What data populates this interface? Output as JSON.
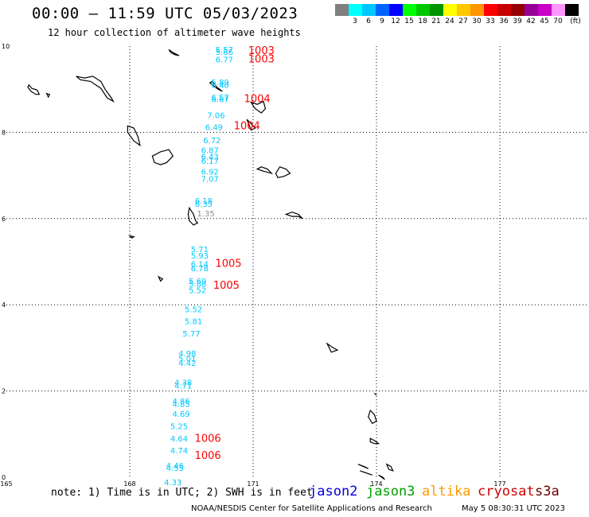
{
  "header": {
    "title": "00:00 — 11:59 UTC 05/03/2023",
    "subtitle": "12 hour collection of altimeter wave heights"
  },
  "scale": {
    "unit": "(ft)",
    "levels": [
      {
        "label": "",
        "color": "#7f7f7f"
      },
      {
        "label": "3",
        "color": "#00ffff"
      },
      {
        "label": "6",
        "color": "#00c8ff"
      },
      {
        "label": "9",
        "color": "#0064ff"
      },
      {
        "label": "12",
        "color": "#0000ff"
      },
      {
        "label": "15",
        "color": "#00ff00"
      },
      {
        "label": "18",
        "color": "#00c800"
      },
      {
        "label": "21",
        "color": "#009600"
      },
      {
        "label": "24",
        "color": "#ffff00"
      },
      {
        "label": "27",
        "color": "#ffc800"
      },
      {
        "label": "30",
        "color": "#ff9600"
      },
      {
        "label": "33",
        "color": "#ff0000"
      },
      {
        "label": "36",
        "color": "#c80000"
      },
      {
        "label": "39",
        "color": "#960000"
      },
      {
        "label": "42",
        "color": "#960096"
      },
      {
        "label": "45",
        "color": "#c800c8"
      },
      {
        "label": "70",
        "color": "#ff96ff"
      },
      {
        "label": "",
        "color": "#000000"
      }
    ]
  },
  "axes": {
    "lat_labels": [
      "10",
      "8",
      "6",
      "4",
      "2",
      "0"
    ],
    "lon_labels": [
      "165",
      "168",
      "171",
      "174",
      "177"
    ]
  },
  "wave_readings": [
    {
      "v": "5.57",
      "lat": 9.85,
      "lon": 170.3
    },
    {
      "v": "5.86",
      "lat": 9.8,
      "lon": 170.3
    },
    {
      "v": "6.77",
      "lat": 9.62,
      "lon": 170.3
    },
    {
      "v": "5.89",
      "lat": 9.1,
      "lon": 170.2
    },
    {
      "v": "6.40",
      "lat": 9.03,
      "lon": 170.2
    },
    {
      "v": "6.57",
      "lat": 8.75,
      "lon": 170.2
    },
    {
      "v": "6.67",
      "lat": 8.7,
      "lon": 170.2
    },
    {
      "v": "7.06",
      "lat": 8.33,
      "lon": 170.1
    },
    {
      "v": "6.49",
      "lat": 8.05,
      "lon": 170.05
    },
    {
      "v": "6.72",
      "lat": 7.75,
      "lon": 170.0
    },
    {
      "v": "6.87",
      "lat": 7.52,
      "lon": 169.95
    },
    {
      "v": "6.43",
      "lat": 7.37,
      "lon": 169.95
    },
    {
      "v": "6.17",
      "lat": 7.27,
      "lon": 169.95
    },
    {
      "v": "6.92",
      "lat": 7.02,
      "lon": 169.95
    },
    {
      "v": "7.07",
      "lat": 6.85,
      "lon": 169.95
    },
    {
      "v": "6.18",
      "lat": 6.35,
      "lon": 169.8
    },
    {
      "v": "6.35",
      "lat": 6.27,
      "lon": 169.8
    },
    {
      "v": "1.35",
      "lat": 6.05,
      "lon": 169.85,
      "grey": true
    },
    {
      "v": "5.71",
      "lat": 5.22,
      "lon": 169.7
    },
    {
      "v": "5.93",
      "lat": 5.07,
      "lon": 169.7
    },
    {
      "v": "6.14",
      "lat": 4.88,
      "lon": 169.7
    },
    {
      "v": "6.78",
      "lat": 4.78,
      "lon": 169.7
    },
    {
      "v": "5.69",
      "lat": 4.48,
      "lon": 169.65
    },
    {
      "v": "5.88",
      "lat": 4.42,
      "lon": 169.65
    },
    {
      "v": "5.52",
      "lat": 4.27,
      "lon": 169.65
    },
    {
      "v": "5.52",
      "lat": 3.83,
      "lon": 169.55
    },
    {
      "v": "5.81",
      "lat": 3.55,
      "lon": 169.55
    },
    {
      "v": "5.77",
      "lat": 3.27,
      "lon": 169.5
    },
    {
      "v": "4.98",
      "lat": 2.8,
      "lon": 169.4
    },
    {
      "v": "5.01",
      "lat": 2.68,
      "lon": 169.4
    },
    {
      "v": "4.42",
      "lat": 2.58,
      "lon": 169.4
    },
    {
      "v": "4.38",
      "lat": 2.13,
      "lon": 169.3
    },
    {
      "v": "4.71",
      "lat": 2.06,
      "lon": 169.3
    },
    {
      "v": "4.86",
      "lat": 1.7,
      "lon": 169.25
    },
    {
      "v": "4.85",
      "lat": 1.63,
      "lon": 169.25
    },
    {
      "v": "4.69",
      "lat": 1.4,
      "lon": 169.25
    },
    {
      "v": "5.25",
      "lat": 1.12,
      "lon": 169.2
    },
    {
      "v": "4.64",
      "lat": 0.83,
      "lon": 169.2
    },
    {
      "v": "4.74",
      "lat": 0.55,
      "lon": 169.2
    },
    {
      "v": "4.46",
      "lat": 0.2,
      "lon": 169.1
    },
    {
      "v": "4.55",
      "lat": 0.15,
      "lon": 169.1
    },
    {
      "v": "4.33",
      "lat": -0.18,
      "lon": 169.05
    }
  ],
  "pressure_labels": [
    {
      "v": "1003",
      "lat": 9.82,
      "lon": 171.2
    },
    {
      "v": "1003",
      "lat": 9.62,
      "lon": 171.2
    },
    {
      "v": "1004",
      "lat": 8.7,
      "lon": 171.1
    },
    {
      "v": "1004",
      "lat": 8.07,
      "lon": 170.85
    },
    {
      "v": "1005",
      "lat": 4.88,
      "lon": 170.4
    },
    {
      "v": "1005",
      "lat": 4.37,
      "lon": 170.35
    },
    {
      "v": "1006",
      "lat": 0.82,
      "lon": 169.9
    },
    {
      "v": "1006",
      "lat": 0.42,
      "lon": 169.9
    }
  ],
  "footer": {
    "note": "note: 1) Time is in UTC; 2) SWH is in feet",
    "satellites": [
      {
        "name": "jason2",
        "color": "#0000dd"
      },
      {
        "name": "jason3",
        "color": "#00a000"
      },
      {
        "name": "altika",
        "color": "#ff9900"
      },
      {
        "name": "cryosat",
        "color": "#cc0000"
      },
      {
        "name": "s3a",
        "color": "#660000"
      }
    ],
    "credit": "NOAA/NESDIS Center for Satellite Applications and Research",
    "generated": "May  5 08:30:31 UTC 2023"
  }
}
